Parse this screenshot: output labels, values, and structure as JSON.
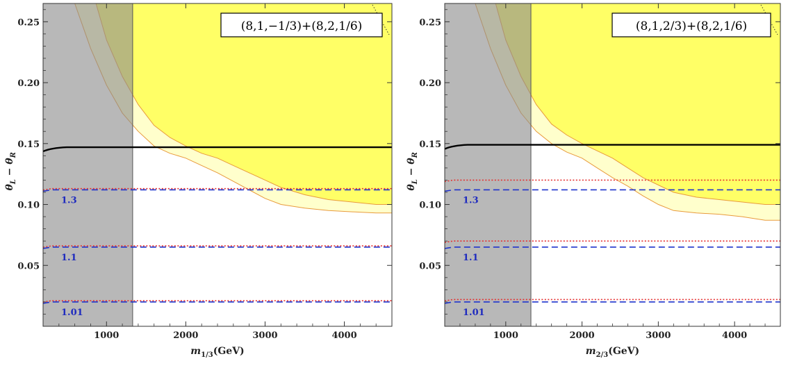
{
  "chart_data": [
    {
      "type": "line",
      "title": "",
      "legend_box": "(8,1,−1/3)+(8,2,1/6)",
      "ylabel": "θ_L − θ_R",
      "xlabel_var": "m_{1/3}",
      "xlabel_unit": "(GeV)",
      "xlim": [
        200,
        4600
      ],
      "ylim": [
        0.0,
        0.265
      ],
      "xticks": [
        1000,
        2000,
        3000,
        4000
      ],
      "yticks": [
        0.05,
        0.1,
        0.15,
        0.2,
        0.25
      ],
      "ytick_labels": [
        "0.05",
        "0.10",
        "0.15",
        "0.20",
        "0.25"
      ],
      "excluded_mass_region": [
        200,
        1330
      ],
      "horizontal_lines": [
        {
          "style": "solid-black",
          "y": 0.147
        },
        {
          "style": "red-dotted",
          "y": 0.113
        },
        {
          "style": "blue-dashed",
          "y": 0.112,
          "label": "1.3"
        },
        {
          "style": "red-dotted",
          "y": 0.066
        },
        {
          "style": "blue-dashed",
          "y": 0.065,
          "label": "1.1"
        },
        {
          "style": "red-dotted",
          "y": 0.021
        },
        {
          "style": "blue-dashed",
          "y": 0.02,
          "label": "1.01"
        }
      ],
      "band_outer": [
        [
          200,
          0.36
        ],
        [
          400,
          0.31
        ],
        [
          600,
          0.265
        ],
        [
          800,
          0.228
        ],
        [
          1000,
          0.198
        ],
        [
          1200,
          0.175
        ],
        [
          1400,
          0.16
        ],
        [
          1600,
          0.148
        ],
        [
          1800,
          0.142
        ],
        [
          2000,
          0.138
        ],
        [
          2200,
          0.132
        ],
        [
          2400,
          0.126
        ],
        [
          2600,
          0.119
        ],
        [
          2800,
          0.112
        ],
        [
          3000,
          0.105
        ],
        [
          3200,
          0.1
        ],
        [
          3500,
          0.097
        ],
        [
          3800,
          0.095
        ],
        [
          4100,
          0.094
        ],
        [
          4400,
          0.093
        ],
        [
          4600,
          0.093
        ]
      ],
      "band_inner": [
        [
          200,
          0.5
        ],
        [
          400,
          0.42
        ],
        [
          600,
          0.34
        ],
        [
          800,
          0.28
        ],
        [
          1000,
          0.235
        ],
        [
          1200,
          0.205
        ],
        [
          1400,
          0.182
        ],
        [
          1600,
          0.165
        ],
        [
          1800,
          0.155
        ],
        [
          2000,
          0.148
        ],
        [
          2200,
          0.142
        ],
        [
          2400,
          0.138
        ],
        [
          2600,
          0.132
        ],
        [
          2800,
          0.126
        ],
        [
          3000,
          0.12
        ],
        [
          3200,
          0.114
        ],
        [
          3500,
          0.108
        ],
        [
          3800,
          0.104
        ],
        [
          4100,
          0.102
        ],
        [
          4400,
          0.1
        ],
        [
          4600,
          0.1
        ]
      ]
    },
    {
      "type": "line",
      "title": "",
      "legend_box": "(8,1,2/3)+(8,2,1/6)",
      "ylabel": "θ_L − θ_R",
      "xlabel_var": "m_{2/3}",
      "xlabel_unit": "(GeV)",
      "xlim": [
        200,
        4600
      ],
      "ylim": [
        0.0,
        0.265
      ],
      "xticks": [
        1000,
        2000,
        3000,
        4000
      ],
      "yticks": [
        0.05,
        0.1,
        0.15,
        0.2,
        0.25
      ],
      "ytick_labels": [
        "0.05",
        "0.10",
        "0.15",
        "0.20",
        "0.25"
      ],
      "excluded_mass_region": [
        200,
        1330
      ],
      "horizontal_lines": [
        {
          "style": "solid-black",
          "y": 0.149
        },
        {
          "style": "red-dotted",
          "y": 0.12
        },
        {
          "style": "blue-dashed",
          "y": 0.112,
          "label": "1.3"
        },
        {
          "style": "red-dotted",
          "y": 0.07
        },
        {
          "style": "blue-dashed",
          "y": 0.065,
          "label": "1.1"
        },
        {
          "style": "red-dotted",
          "y": 0.022
        },
        {
          "style": "blue-dashed",
          "y": 0.02,
          "label": "1.01"
        }
      ],
      "band_outer": [
        [
          200,
          0.36
        ],
        [
          400,
          0.31
        ],
        [
          600,
          0.265
        ],
        [
          800,
          0.228
        ],
        [
          1000,
          0.198
        ],
        [
          1200,
          0.175
        ],
        [
          1400,
          0.16
        ],
        [
          1600,
          0.15
        ],
        [
          1800,
          0.143
        ],
        [
          2000,
          0.138
        ],
        [
          2200,
          0.13
        ],
        [
          2400,
          0.122
        ],
        [
          2600,
          0.115
        ],
        [
          2800,
          0.107
        ],
        [
          3000,
          0.1
        ],
        [
          3200,
          0.095
        ],
        [
          3500,
          0.093
        ],
        [
          3800,
          0.092
        ],
        [
          4100,
          0.09
        ],
        [
          4400,
          0.087
        ],
        [
          4600,
          0.087
        ]
      ],
      "band_inner": [
        [
          200,
          0.5
        ],
        [
          400,
          0.42
        ],
        [
          600,
          0.34
        ],
        [
          800,
          0.28
        ],
        [
          1000,
          0.235
        ],
        [
          1200,
          0.205
        ],
        [
          1400,
          0.182
        ],
        [
          1600,
          0.166
        ],
        [
          1800,
          0.157
        ],
        [
          2000,
          0.15
        ],
        [
          2200,
          0.144
        ],
        [
          2400,
          0.138
        ],
        [
          2600,
          0.13
        ],
        [
          2800,
          0.122
        ],
        [
          3000,
          0.116
        ],
        [
          3200,
          0.11
        ],
        [
          3500,
          0.106
        ],
        [
          3800,
          0.104
        ],
        [
          4100,
          0.102
        ],
        [
          4400,
          0.1
        ],
        [
          4600,
          0.1
        ]
      ]
    }
  ],
  "colors": {
    "yellow": "#ffff66",
    "light_yellow": "#ffffcc",
    "band_edge": "#e89a3c",
    "gray": "#b3b3b3",
    "olive_overlap": "#b3b36a",
    "black_line": "#000000",
    "red_line": "#e53030",
    "blue_line": "#1f33cc",
    "blue_label": "#1f2bbf"
  }
}
